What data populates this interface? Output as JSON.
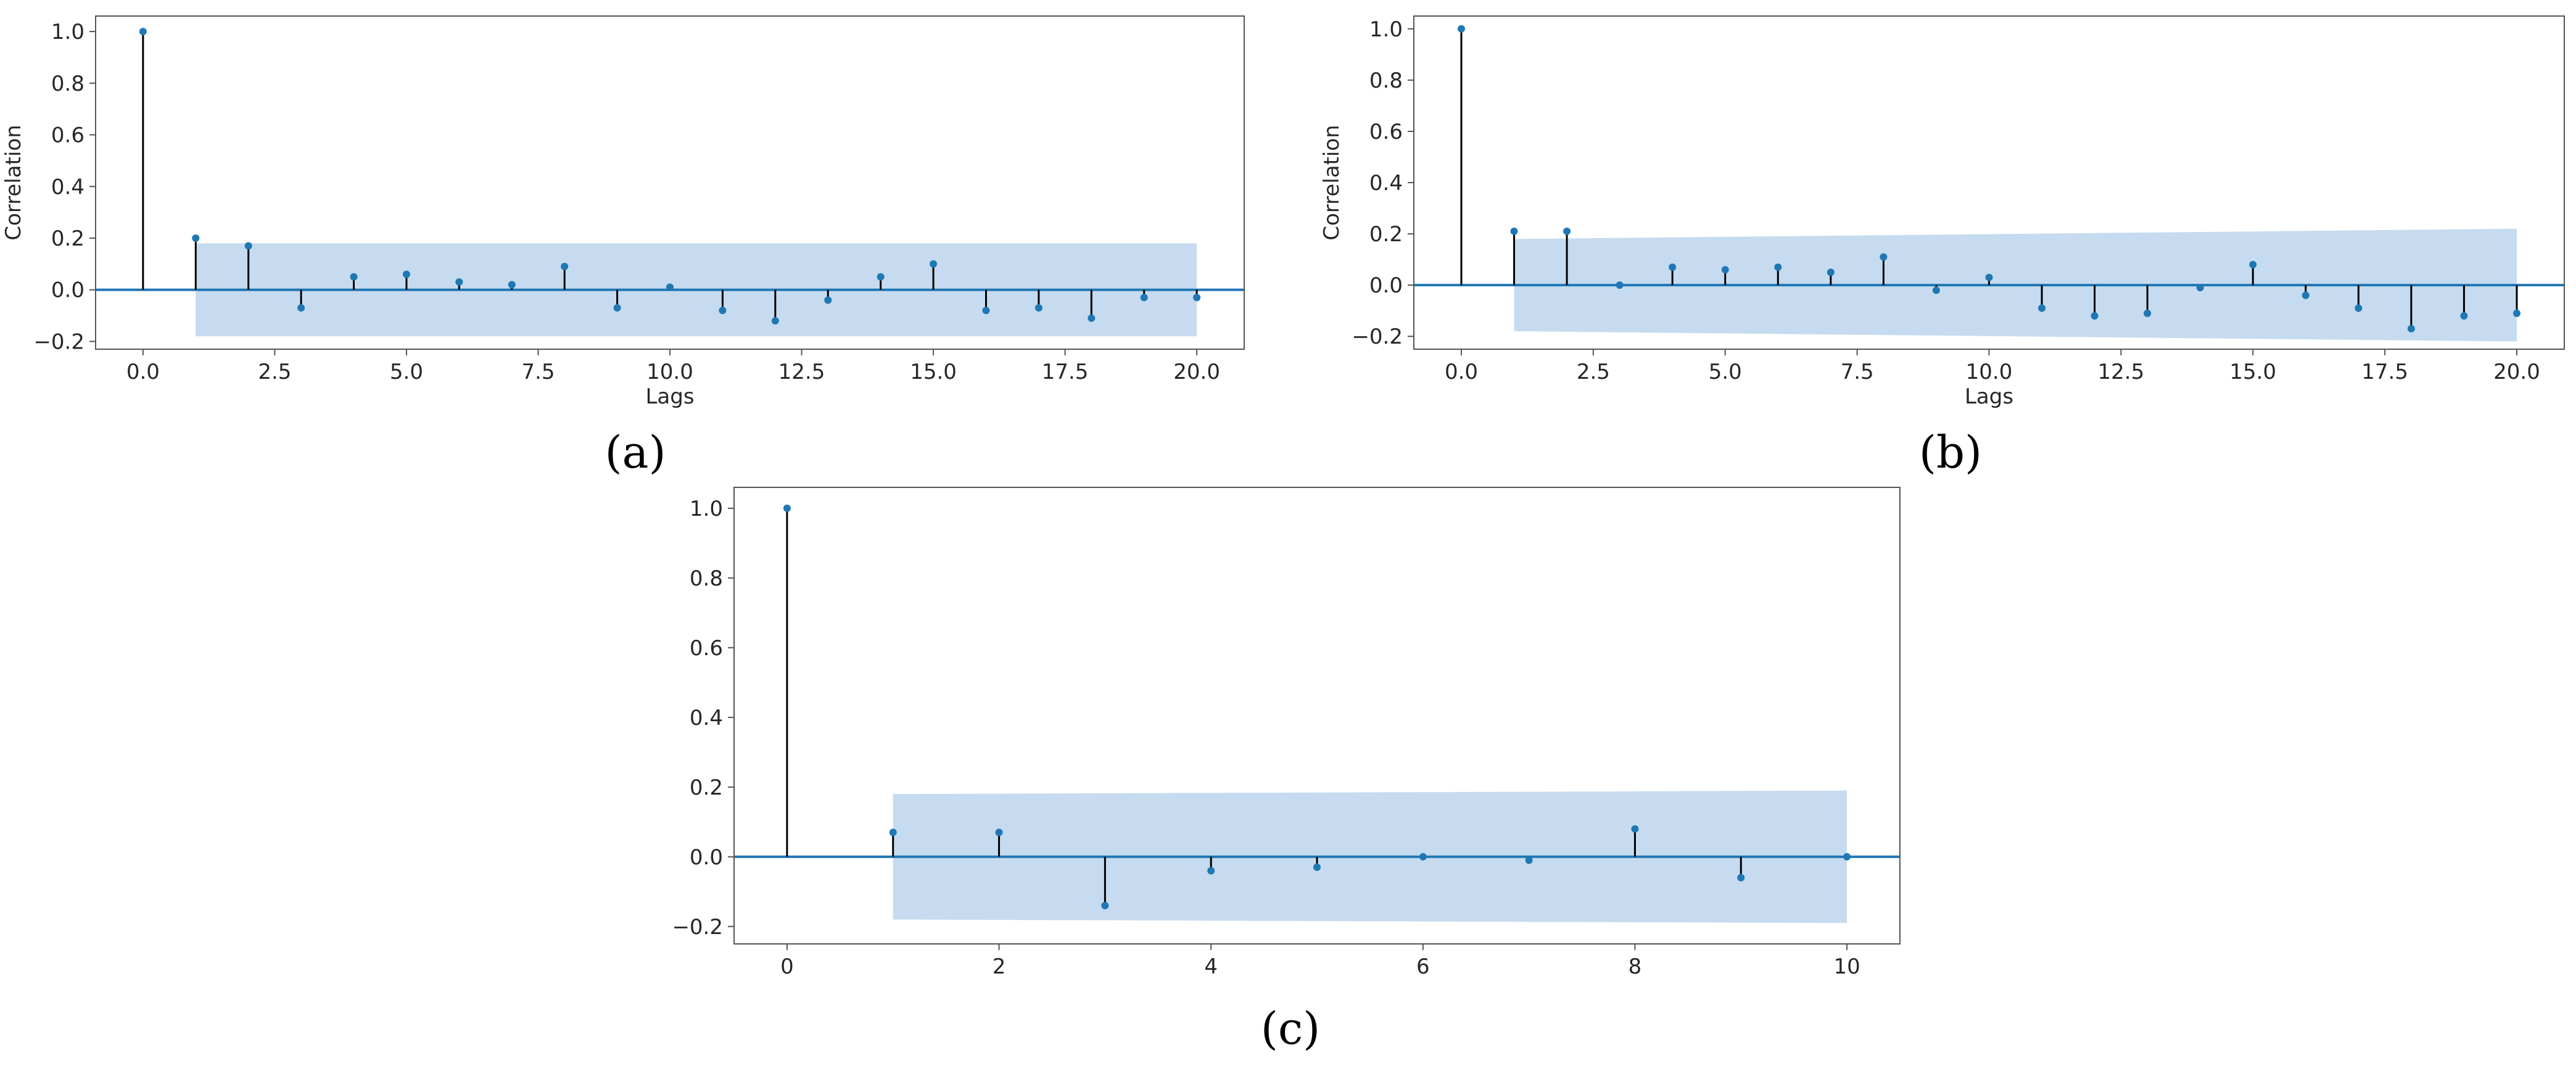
{
  "figure": {
    "panel_labels": [
      "(a)",
      "(b)",
      "(c)"
    ]
  },
  "colors": {
    "band": "#c6dbef",
    "marker": "#1f77b4",
    "zero_line": "#1f77b4",
    "stem": "#000000",
    "frame": "#555555",
    "text": "#262626"
  },
  "chart_data": [
    {
      "type": "stem",
      "panel": "(a)",
      "title": "",
      "xlabel": "Lags",
      "ylabel": "Correlation",
      "xlim": [
        -0.9,
        20.9
      ],
      "ylim": [
        -0.23,
        1.06
      ],
      "xticks": [
        0,
        2.5,
        5,
        7.5,
        10,
        12.5,
        15,
        17.5,
        20
      ],
      "xtick_labels": [
        "0.0",
        "2.5",
        "5.0",
        "7.5",
        "10.0",
        "12.5",
        "15.0",
        "17.5",
        "20.0"
      ],
      "yticks": [
        -0.2,
        0,
        0.2,
        0.4,
        0.6,
        0.8,
        1.0
      ],
      "ytick_labels": [
        "−0.2",
        "0.0",
        "0.2",
        "0.4",
        "0.6",
        "0.8",
        "1.0"
      ],
      "lags": [
        0,
        1,
        2,
        3,
        4,
        5,
        6,
        7,
        8,
        9,
        10,
        11,
        12,
        13,
        14,
        15,
        16,
        17,
        18,
        19,
        20
      ],
      "values": [
        1.0,
        0.2,
        0.17,
        -0.07,
        0.05,
        0.06,
        0.03,
        0.02,
        0.09,
        -0.07,
        0.01,
        -0.08,
        -0.12,
        -0.04,
        0.05,
        0.1,
        -0.08,
        -0.07,
        -0.11,
        -0.03,
        -0.03
      ],
      "confidence_band": {
        "x_start": 1,
        "x_end": 20,
        "upper": [
          0.18,
          0.18
        ],
        "lower": [
          -0.18,
          -0.18
        ]
      }
    },
    {
      "type": "stem",
      "panel": "(b)",
      "title": "",
      "xlabel": "Lags",
      "ylabel": "Correlation",
      "xlim": [
        -0.9,
        20.9
      ],
      "ylim": [
        -0.25,
        1.05
      ],
      "xticks": [
        0,
        2.5,
        5,
        7.5,
        10,
        12.5,
        15,
        17.5,
        20
      ],
      "xtick_labels": [
        "0.0",
        "2.5",
        "5.0",
        "7.5",
        "10.0",
        "12.5",
        "15.0",
        "17.5",
        "20.0"
      ],
      "yticks": [
        -0.2,
        0,
        0.2,
        0.4,
        0.6,
        0.8,
        1.0
      ],
      "ytick_labels": [
        "−0.2",
        "0.0",
        "0.2",
        "0.4",
        "0.6",
        "0.8",
        "1.0"
      ],
      "lags": [
        0,
        1,
        2,
        3,
        4,
        5,
        6,
        7,
        8,
        9,
        10,
        11,
        12,
        13,
        14,
        15,
        16,
        17,
        18,
        19,
        20
      ],
      "values": [
        1.0,
        0.21,
        0.21,
        0.0,
        0.07,
        0.06,
        0.07,
        0.05,
        0.11,
        -0.02,
        0.03,
        -0.09,
        -0.12,
        -0.11,
        -0.01,
        0.08,
        -0.04,
        -0.09,
        -0.17,
        -0.12,
        -0.11
      ],
      "confidence_band": {
        "x_start": 1,
        "x_end": 20,
        "upper": [
          0.18,
          0.22
        ],
        "lower": [
          -0.18,
          -0.22
        ]
      }
    },
    {
      "type": "stem",
      "panel": "(c)",
      "title": "",
      "xlabel": "",
      "ylabel": "",
      "xlim": [
        -0.5,
        10.5
      ],
      "ylim": [
        -0.25,
        1.06
      ],
      "xticks": [
        0,
        2,
        4,
        6,
        8,
        10
      ],
      "xtick_labels": [
        "0",
        "2",
        "4",
        "6",
        "8",
        "10"
      ],
      "yticks": [
        -0.2,
        0,
        0.2,
        0.4,
        0.6,
        0.8,
        1.0
      ],
      "ytick_labels": [
        "−0.2",
        "0.0",
        "0.2",
        "0.4",
        "0.6",
        "0.8",
        "1.0"
      ],
      "lags": [
        0,
        1,
        2,
        3,
        4,
        5,
        6,
        7,
        8,
        9,
        10
      ],
      "values": [
        1.0,
        0.07,
        0.07,
        -0.14,
        -0.04,
        -0.03,
        0.0,
        -0.01,
        0.08,
        -0.06,
        0.0
      ],
      "confidence_band": {
        "x_start": 1,
        "x_end": 10,
        "upper": [
          0.18,
          0.19
        ],
        "lower": [
          -0.18,
          -0.19
        ]
      }
    }
  ]
}
